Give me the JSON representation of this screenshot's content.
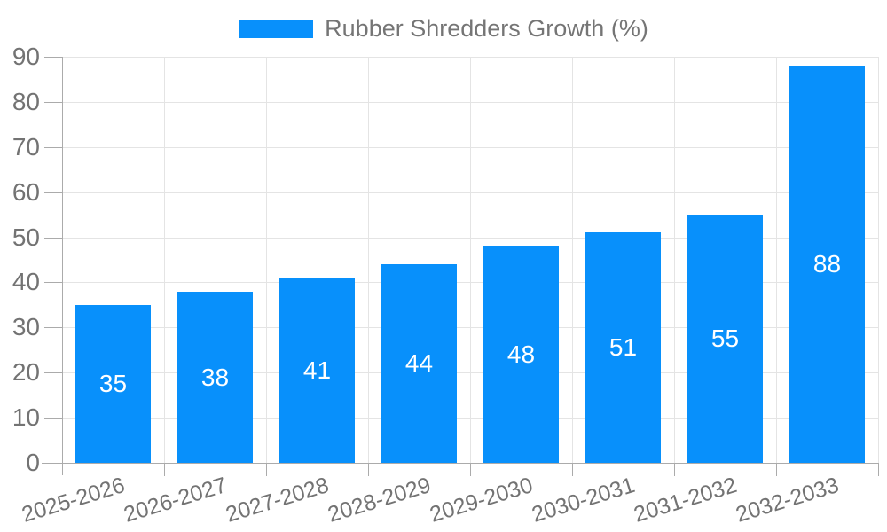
{
  "chart_data": {
    "type": "bar",
    "title": "",
    "legend": {
      "label": "Rubber Shredders Growth (%)",
      "position": "top"
    },
    "categories": [
      "2025-2026",
      "2026-2027",
      "2027-2028",
      "2028-2029",
      "2029-2030",
      "2030-2031",
      "2031-2032",
      "2032-2033"
    ],
    "values": [
      35,
      38,
      41,
      44,
      48,
      51,
      55,
      88
    ],
    "xlabel": "",
    "ylabel": "",
    "ylim": [
      0,
      90
    ],
    "yticks": [
      0,
      10,
      20,
      30,
      40,
      50,
      60,
      70,
      80,
      90
    ],
    "grid": true,
    "value_labels_inside_bars": true,
    "colors": {
      "bar": "#0890fb",
      "value_label": "#ffffff",
      "tick_label": "#737373",
      "legend_label": "#757575",
      "grid_line": "#e4e4e4",
      "axis_line": "#ababab",
      "background": "#ffffff"
    }
  }
}
